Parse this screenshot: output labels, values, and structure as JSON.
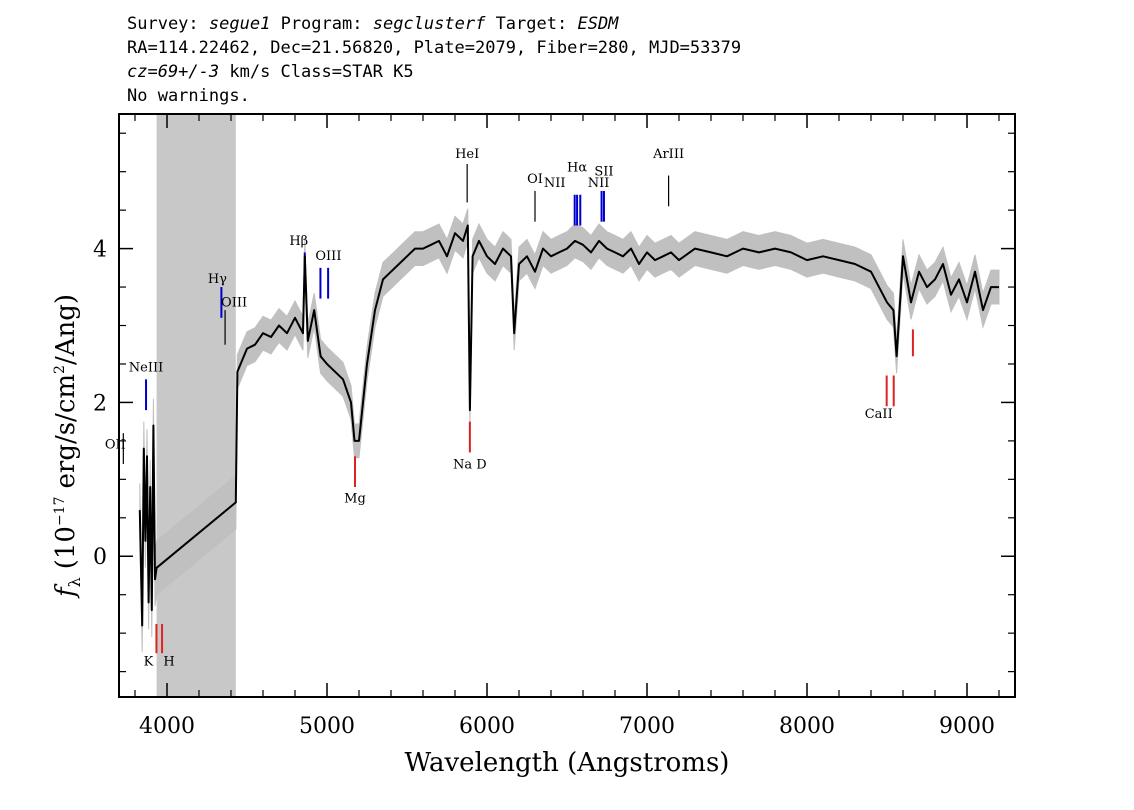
{
  "header": {
    "survey_label": "Survey:",
    "survey": "segue1",
    "program_label": "Program:",
    "program": "segclusterf",
    "target_label": "Target:",
    "target": "ESDM",
    "line2": "RA=114.22462, Dec=21.56820, Plate=2079, Fiber=280, MJD=53379",
    "cz": "cz=69+/-3",
    "cz_rest": " km/s Class=STAR K5",
    "line4": "No warnings."
  },
  "chart_data": {
    "type": "line",
    "xlabel": "Wavelength (Angstroms)",
    "ylabel_main": "f",
    "ylabel_sub": "λ",
    "ylabel_rest": "(10",
    "ylabel_exp": "−17",
    "ylabel_tail": "erg/s/cm",
    "ylabel_exp2": "2",
    "ylabel_end": "/Ang)",
    "xlim": [
      3700,
      9300
    ],
    "ylim": [
      -1.83,
      5.75
    ],
    "xticks": [
      4000,
      5000,
      6000,
      7000,
      8000,
      9000
    ],
    "xtick_labels": [
      "4000",
      "5000",
      "6000",
      "7000",
      "8000",
      "9000"
    ],
    "yticks": [
      0,
      2,
      4
    ],
    "ytick_labels": [
      "0",
      "2",
      "4"
    ],
    "masked_region": [
      3935,
      4430
    ],
    "colors": {
      "spectrum": "#000000",
      "error": "#c0c0c0",
      "mask": "#c8c8c8",
      "emission": "#0000cc",
      "absorption": "#dd2222",
      "other": "#000000"
    },
    "series": [
      {
        "x": [
          3830,
          3845,
          3855,
          3865,
          3875,
          3885,
          3895,
          3905,
          3915,
          3925,
          3935,
          4430,
          4440,
          4460,
          4500,
          4550,
          4600,
          4650,
          4700,
          4750,
          4800,
          4850,
          4861,
          4880,
          4920,
          4960,
          5000,
          5050,
          5100,
          5150,
          5172,
          5200,
          5250,
          5300,
          5350,
          5400,
          5450,
          5500,
          5550,
          5600,
          5650,
          5700,
          5750,
          5800,
          5850,
          5880,
          5893,
          5910,
          5950,
          6000,
          6050,
          6100,
          6150,
          6170,
          6200,
          6250,
          6300,
          6350,
          6400,
          6450,
          6500,
          6550,
          6600,
          6650,
          6700,
          6750,
          6800,
          6850,
          6900,
          6950,
          7000,
          7050,
          7100,
          7150,
          7200,
          7300,
          7400,
          7500,
          7600,
          7700,
          7800,
          7900,
          8000,
          8100,
          8200,
          8300,
          8400,
          8450,
          8500,
          8540,
          8560,
          8600,
          8650,
          8700,
          8750,
          8800,
          8850,
          8900,
          8950,
          9000,
          9050,
          9100,
          9150,
          9200
        ],
        "y": [
          0.6,
          -0.9,
          1.4,
          0.2,
          1.3,
          -0.6,
          0.9,
          -0.7,
          1.7,
          -0.3,
          -0.15,
          0.7,
          2.4,
          2.5,
          2.7,
          2.75,
          2.9,
          2.85,
          3.0,
          2.9,
          3.1,
          2.9,
          3.9,
          2.8,
          3.2,
          2.6,
          2.5,
          2.4,
          2.3,
          2.0,
          1.5,
          1.5,
          2.5,
          3.2,
          3.6,
          3.7,
          3.8,
          3.9,
          4.0,
          4.0,
          4.05,
          4.1,
          3.9,
          4.2,
          4.1,
          4.3,
          1.9,
          3.9,
          4.1,
          3.9,
          3.8,
          4.0,
          3.9,
          2.9,
          3.8,
          3.9,
          3.7,
          4.0,
          3.9,
          3.95,
          4.0,
          4.1,
          4.05,
          3.95,
          4.1,
          4.0,
          3.95,
          3.9,
          4.0,
          3.8,
          3.95,
          3.85,
          3.9,
          3.95,
          3.85,
          4.0,
          3.95,
          3.9,
          4.0,
          3.95,
          4.0,
          3.95,
          3.85,
          3.9,
          3.85,
          3.8,
          3.7,
          3.5,
          3.3,
          3.2,
          2.6,
          3.9,
          3.3,
          3.7,
          3.5,
          3.6,
          3.8,
          3.4,
          3.6,
          3.3,
          3.7,
          3.2,
          3.5,
          3.5
        ]
      }
    ],
    "lines": [
      {
        "label": "OII",
        "x": 3727,
        "y_top": 1.6,
        "y_bot": 1.2,
        "color": "other",
        "label_y": 1.4,
        "label_dx": -8
      },
      {
        "label": "NeIII",
        "x": 3869,
        "y_top": 2.3,
        "y_bot": 1.9,
        "color": "emission",
        "label_y": 2.4,
        "label_dx": 0
      },
      {
        "label": "K",
        "x": 3934,
        "y_top": -0.88,
        "y_bot": -1.26,
        "color": "absorption",
        "label_y": -1.42,
        "label_dx": -8
      },
      {
        "label": "H",
        "x": 3969,
        "y_top": -0.88,
        "y_bot": -1.26,
        "color": "absorption",
        "label_y": -1.42,
        "label_dx": 7
      },
      {
        "label": "Hγ",
        "x": 4340,
        "y_top": 3.5,
        "y_bot": 3.1,
        "color": "emission",
        "label_y": 3.55,
        "label_dx": -4
      },
      {
        "label": "OIII",
        "x": 4363,
        "y_top": 3.2,
        "y_bot": 2.75,
        "color": "other",
        "label_y": 3.25,
        "label_dx": 9
      },
      {
        "label": "Hβ",
        "x": 4861,
        "y_top": 3.95,
        "y_bot": 3.55,
        "color": "emission",
        "label_y": 4.05,
        "label_dx": -6
      },
      {
        "label": "OIII",
        "x": 4959,
        "y_top": 3.75,
        "y_bot": 3.35,
        "color": "emission",
        "label_y": 3.85,
        "label_dx": 8
      },
      {
        "label": "",
        "x": 5007,
        "y_top": 3.75,
        "y_bot": 3.35,
        "color": "emission",
        "label_y": 3.85,
        "label_dx": 0
      },
      {
        "label": "Mg",
        "x": 5175,
        "y_top": 1.3,
        "y_bot": 0.9,
        "color": "absorption",
        "label_y": 0.7,
        "label_dx": 0
      },
      {
        "label": "HeI",
        "x": 5876,
        "y_top": 5.1,
        "y_bot": 4.6,
        "color": "other",
        "label_y": 5.18,
        "label_dx": 0
      },
      {
        "label": "Na D",
        "x": 5893,
        "y_top": 1.75,
        "y_bot": 1.35,
        "color": "absorption",
        "label_y": 1.14,
        "label_dx": 0
      },
      {
        "label": "OI",
        "x": 6300,
        "y_top": 4.75,
        "y_bot": 4.35,
        "color": "other",
        "label_y": 4.85,
        "label_dx": 0
      },
      {
        "label": "NII",
        "x": 6548,
        "y_top": 4.7,
        "y_bot": 4.3,
        "color": "emission",
        "label_y": 4.8,
        "label_dx": -20
      },
      {
        "label": "Hα",
        "x": 6563,
        "y_top": 4.7,
        "y_bot": 4.3,
        "color": "emission",
        "label_y": 5.0,
        "label_dx": 0
      },
      {
        "label": "",
        "x": 6583,
        "y_top": 4.7,
        "y_bot": 4.3,
        "color": "emission",
        "label_y": 4.8,
        "label_dx": 0
      },
      {
        "label": "NII",
        "x": 6716,
        "y_top": 4.75,
        "y_bot": 4.35,
        "color": "emission",
        "label_y": 4.8,
        "label_dx": -3
      },
      {
        "label": "SII",
        "x": 6731,
        "y_top": 4.75,
        "y_bot": 4.35,
        "color": "emission",
        "label_y": 4.95,
        "label_dx": 0
      },
      {
        "label": "ArIII",
        "x": 7135,
        "y_top": 4.95,
        "y_bot": 4.55,
        "color": "other",
        "label_y": 5.18,
        "label_dx": 0
      },
      {
        "label": "",
        "x": 8498,
        "y_top": 2.35,
        "y_bot": 1.95,
        "color": "absorption",
        "label_y": 1.8,
        "label_dx": 0
      },
      {
        "label": "CaII",
        "x": 8542,
        "y_top": 2.35,
        "y_bot": 1.95,
        "color": "absorption",
        "label_y": 1.8,
        "label_dx": -15
      },
      {
        "label": "",
        "x": 8662,
        "y_top": 2.95,
        "y_bot": 2.6,
        "color": "absorption",
        "label_y": 1.8,
        "label_dx": 0
      }
    ]
  }
}
